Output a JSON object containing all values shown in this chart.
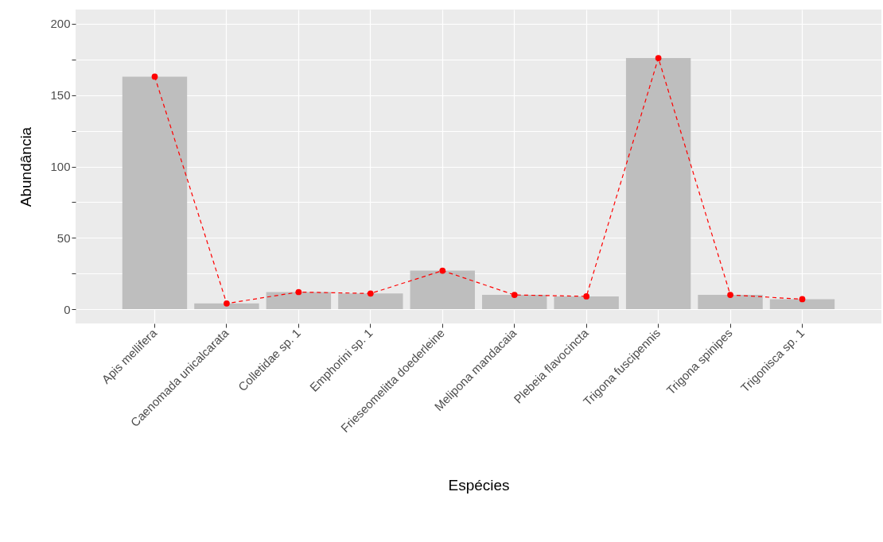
{
  "chart_data": {
    "type": "bar",
    "xlabel": "Espécies",
    "ylabel": "Abundância",
    "categories": [
      "Apis mellifera",
      "Caenomada unicalcarata",
      "Colletidae sp. 1",
      "Emphorini sp. 1",
      "Frieseomelitta doederleine",
      "Melipona mandacaia",
      "Plebeia flavocincta",
      "Trigona fuscipennis",
      "Trigona spinipes",
      "Trigonisca sp. 1"
    ],
    "series": [
      {
        "color": "#bebebe",
        "values": [
          163,
          4,
          12,
          11,
          27,
          10,
          9,
          176,
          10,
          7
        ]
      },
      {
        "type": "line",
        "color": "#ff0000",
        "marker": "circle",
        "line_style": "dashed",
        "values": [
          163,
          4,
          12,
          11,
          27,
          10,
          9,
          176,
          10,
          7
        ]
      }
    ],
    "ylim": [
      -10,
      210
    ],
    "yticks": [
      0,
      {
        "value": 25,
        "label": null
      },
      50,
      {
        "value": 75,
        "label": null
      },
      100,
      {
        "value": 125,
        "label": null
      },
      150,
      {
        "value": 175,
        "label": null
      },
      200
    ],
    "grid": true
  }
}
